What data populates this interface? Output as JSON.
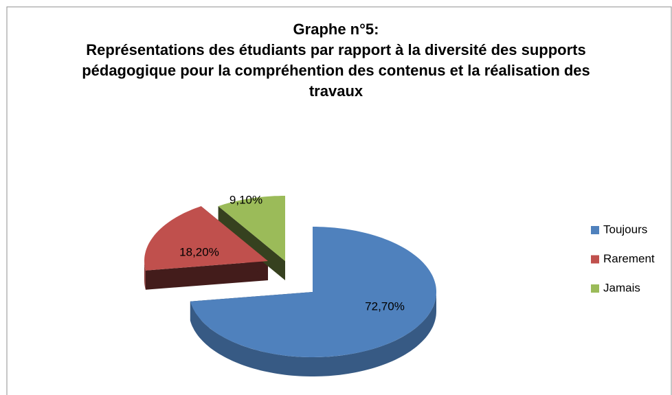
{
  "chart_data": {
    "type": "pie3d",
    "title": "Graphe n°5:",
    "subtitle": "Représentations des étudiants par rapport à la diversité des supports pédagogique pour la compréhention des contenus et la réalisation des travaux",
    "categories": [
      "Toujours",
      "Rarement",
      "Jamais"
    ],
    "values": [
      72.7,
      18.2,
      9.1
    ],
    "value_labels": [
      "72,70%",
      "18,20%",
      "9,10%"
    ],
    "colors": [
      "#4f81bd",
      "#c0504d",
      "#9bbb59"
    ],
    "legend": "right"
  }
}
